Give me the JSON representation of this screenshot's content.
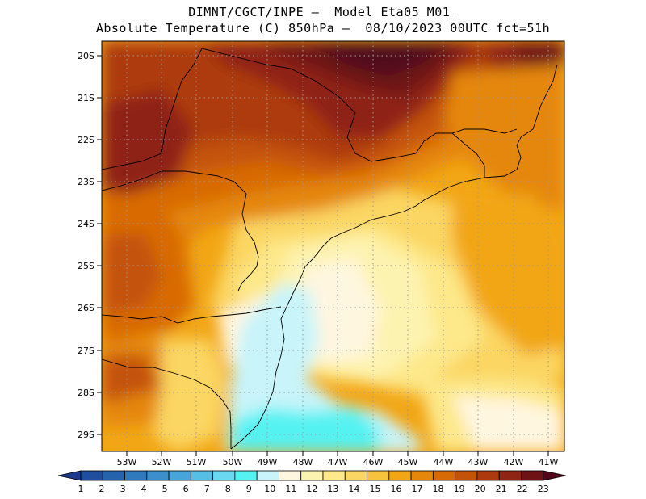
{
  "header": {
    "line1": "DIMNT/CGCT/INPE –  Model Eta05_M01_",
    "line2": "Absolute Temperature (C) 850hPa –  08/10/2023 00UTC fct=51h"
  },
  "axes": {
    "lat_labels": [
      "20S",
      "21S",
      "22S",
      "23S",
      "24S",
      "25S",
      "26S",
      "27S",
      "28S",
      "29S"
    ],
    "lon_labels": [
      "53W",
      "52W",
      "51W",
      "50W",
      "49W",
      "48W",
      "47W",
      "46W",
      "45W",
      "44W",
      "43W",
      "42W",
      "41W"
    ]
  },
  "colorbar": {
    "labels": [
      "1",
      "2",
      "3",
      "4",
      "5",
      "6",
      "7",
      "8",
      "9",
      "10",
      "11",
      "12",
      "13",
      "14",
      "15",
      "16",
      "17",
      "18",
      "19",
      "20",
      "21",
      "22",
      "23"
    ],
    "colors": [
      "#1b3a8c",
      "#1f4e9e",
      "#2563ad",
      "#2f79bd",
      "#3a8fcc",
      "#46a6d9",
      "#56bfe6",
      "#6ad8f0",
      "#55f2f2",
      "#c8f4fa",
      "#fff6e0",
      "#fdf3b0",
      "#fde88a",
      "#fbd662",
      "#f8c33c",
      "#f2a615",
      "#e5870a",
      "#d86a06",
      "#c45309",
      "#ad3a0f",
      "#8f2414",
      "#6e1216",
      "#50081a"
    ]
  }
}
